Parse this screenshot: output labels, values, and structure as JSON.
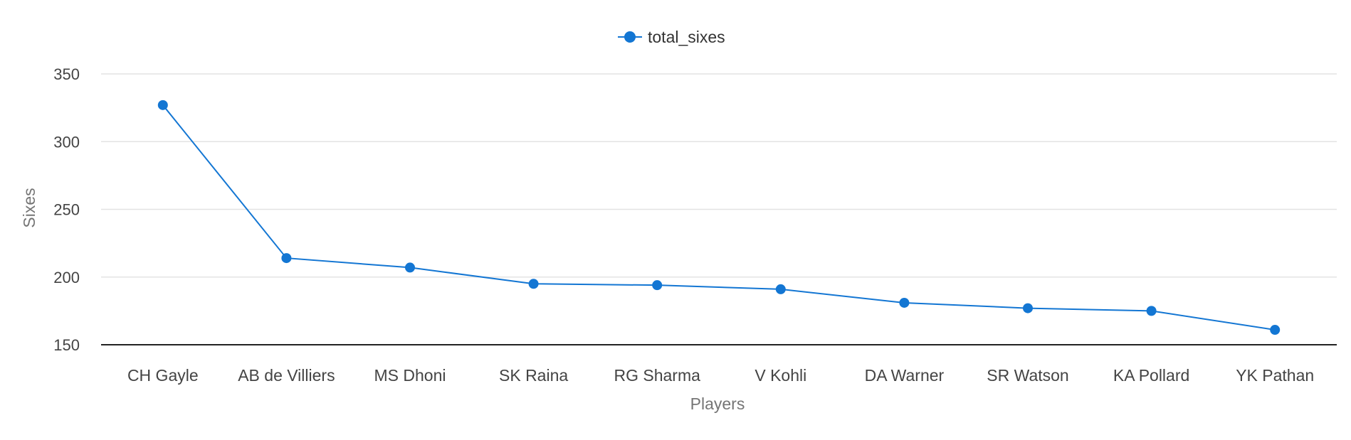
{
  "chart_data": {
    "type": "line",
    "categories": [
      "CH Gayle",
      "AB de Villiers",
      "MS Dhoni",
      "SK Raina",
      "RG Sharma",
      "V Kohli",
      "DA Warner",
      "SR Watson",
      "KA Pollard",
      "YK Pathan"
    ],
    "series": [
      {
        "name": "total_sixes",
        "values": [
          327,
          214,
          207,
          195,
          194,
          191,
          181,
          177,
          175,
          161
        ],
        "color": "#1376d3"
      }
    ],
    "xlabel": "Players",
    "ylabel": "Sixes",
    "ylim": [
      150,
      350
    ],
    "yticks": [
      "350",
      "300",
      "250",
      "200",
      "150"
    ],
    "grid": true,
    "legend_position": "top-center"
  }
}
